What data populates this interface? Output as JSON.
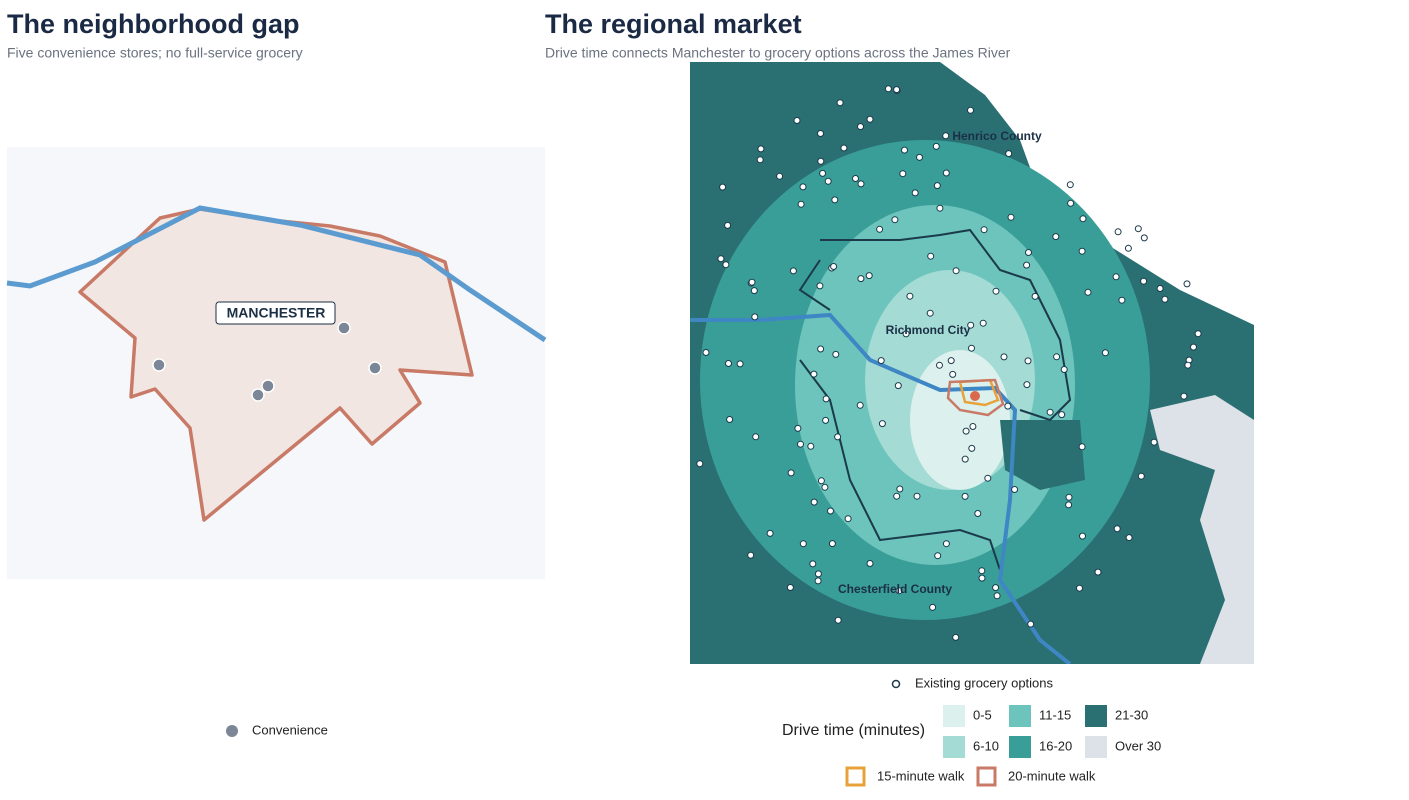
{
  "left": {
    "title": "The neighborhood gap",
    "subtitle": "Five convenience stores; no full-service grocery",
    "label": "MANCHESTER",
    "legend": {
      "label": "Convenience",
      "color": "#7b8796"
    }
  },
  "right": {
    "title": "The regional market",
    "subtitle": "Drive time connects Manchester to grocery options across the James River",
    "places": [
      "Henrico County",
      "Richmond City",
      "Chesterfield County"
    ],
    "points_legend": "Existing grocery options",
    "drive_time": {
      "title": "Drive time (minutes)",
      "bins": [
        {
          "label": "0-5",
          "color": "#dcf1ee"
        },
        {
          "label": "6-10",
          "color": "#a4dbd5"
        },
        {
          "label": "11-15",
          "color": "#6cc4bc"
        },
        {
          "label": "16-20",
          "color": "#3a9e98"
        },
        {
          "label": "21-30",
          "color": "#2a7073"
        },
        {
          "label": "Over 30",
          "color": "#dde2e8"
        }
      ]
    },
    "walk": [
      {
        "label": "15-minute walk",
        "color": "#e8a23a"
      },
      {
        "label": "20-minute walk",
        "color": "#c97a66"
      }
    ]
  }
}
